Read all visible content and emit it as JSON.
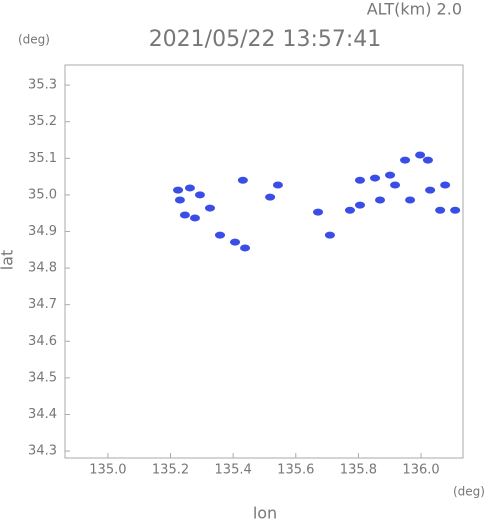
{
  "chart_data": {
    "type": "scatter",
    "title": "2021/05/22 13:57:41",
    "altitude_label": "ALT(km) 2.0",
    "y_unit": "(deg)",
    "x_unit": "(deg)",
    "xlabel": "lon",
    "ylabel": "lat",
    "xlim": [
      134.863,
      136.134
    ],
    "ylim": [
      34.281,
      35.355
    ],
    "xticks": [
      {
        "value": 135.0,
        "label": "135.0"
      },
      135.2,
      135.4,
      135.6,
      135.8,
      {
        "value": 136.0,
        "label": "136.0"
      }
    ],
    "yticks": [
      34.3,
      34.4,
      34.5,
      34.6,
      34.7,
      34.8,
      34.9,
      {
        "value": 35.0,
        "label": "35.0"
      },
      35.1,
      35.2,
      35.3
    ],
    "color": "#3a4ee6",
    "x": [
      135.224,
      135.262,
      135.294,
      135.246,
      135.278,
      135.326,
      135.23,
      135.358,
      135.406,
      135.438,
      135.431,
      135.518,
      135.543,
      135.671,
      135.709,
      135.773,
      135.805,
      135.805,
      135.853,
      135.901,
      135.949,
      135.997,
      136.022,
      135.917,
      135.965,
      136.029,
      136.077,
      136.109,
      136.061,
      135.869
    ],
    "y": [
      35.013,
      35.019,
      35.0,
      34.945,
      34.937,
      34.964,
      34.986,
      34.89,
      34.871,
      34.855,
      35.04,
      34.994,
      35.027,
      34.953,
      34.89,
      34.958,
      34.972,
      35.04,
      35.046,
      35.054,
      35.095,
      35.109,
      35.095,
      35.027,
      34.986,
      35.013,
      35.027,
      34.958,
      34.958,
      34.986
    ]
  }
}
